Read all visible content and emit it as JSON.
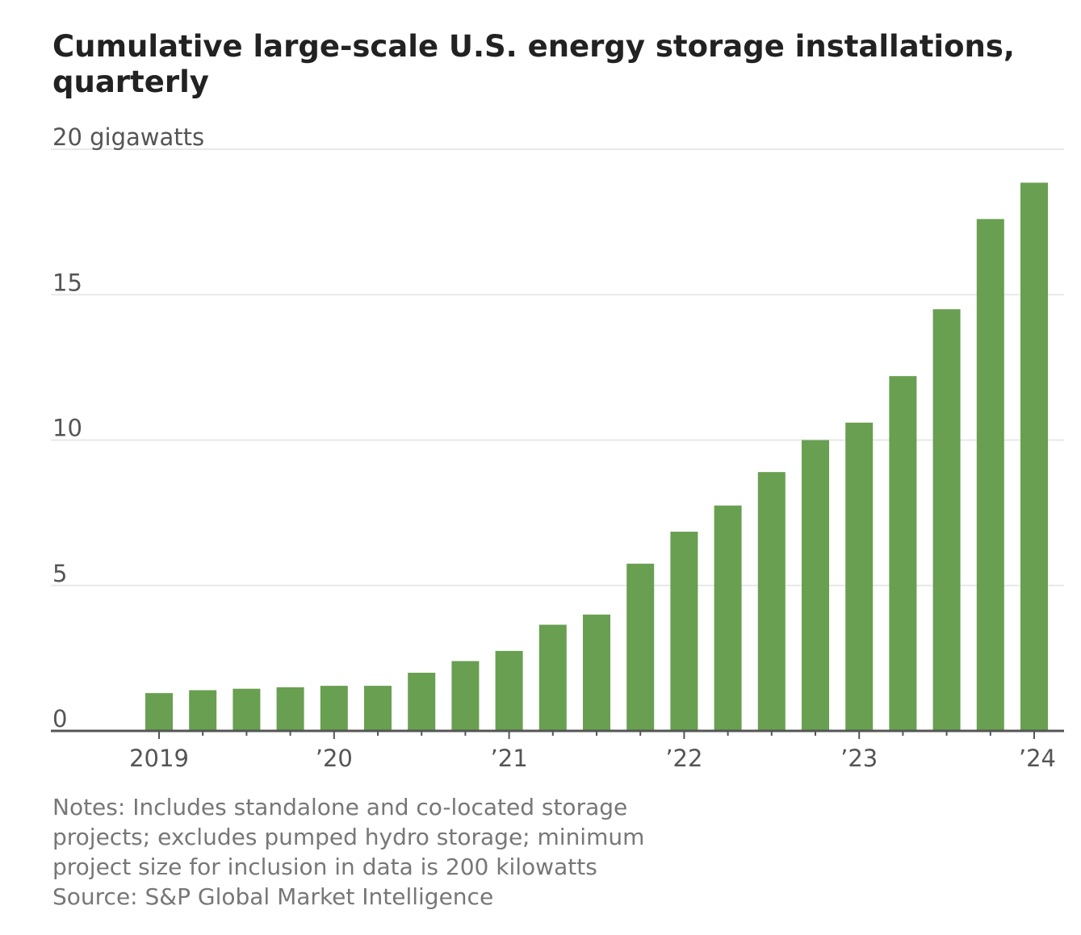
{
  "chart_data": {
    "type": "bar",
    "title": "Cumulative large-scale U.S. energy storage installations, quarterly",
    "ylabel": "20 gigawatts",
    "ylim": [
      0,
      20
    ],
    "yticks": [
      "0",
      "5",
      "10",
      "15"
    ],
    "x_tick_labels": [
      "2019",
      "’20",
      "’21",
      "’22",
      "’23",
      "’24"
    ],
    "categories": [
      "2019 Q1",
      "2019 Q2",
      "2019 Q3",
      "2019 Q4",
      "2020 Q1",
      "2020 Q2",
      "2020 Q3",
      "2020 Q4",
      "2021 Q1",
      "2021 Q2",
      "2021 Q3",
      "2021 Q4",
      "2022 Q1",
      "2022 Q2",
      "2022 Q3",
      "2022 Q4",
      "2023 Q1",
      "2023 Q2",
      "2023 Q3",
      "2023 Q4",
      "2024 Q1"
    ],
    "values": [
      1.3,
      1.4,
      1.45,
      1.5,
      1.55,
      1.55,
      2.0,
      2.4,
      2.75,
      3.65,
      4.0,
      5.75,
      6.85,
      7.75,
      8.9,
      10.0,
      10.6,
      12.2,
      14.5,
      17.6,
      18.85
    ],
    "color": "#689f50",
    "grid": true
  },
  "notes": {
    "line1": "Notes: Includes standalone and co-located storage",
    "line2": "projects; excludes pumped hydro storage; minimum",
    "line3": "project size for inclusion in data is 200 kilowatts",
    "source": "Source: S&P Global Market Intelligence"
  }
}
